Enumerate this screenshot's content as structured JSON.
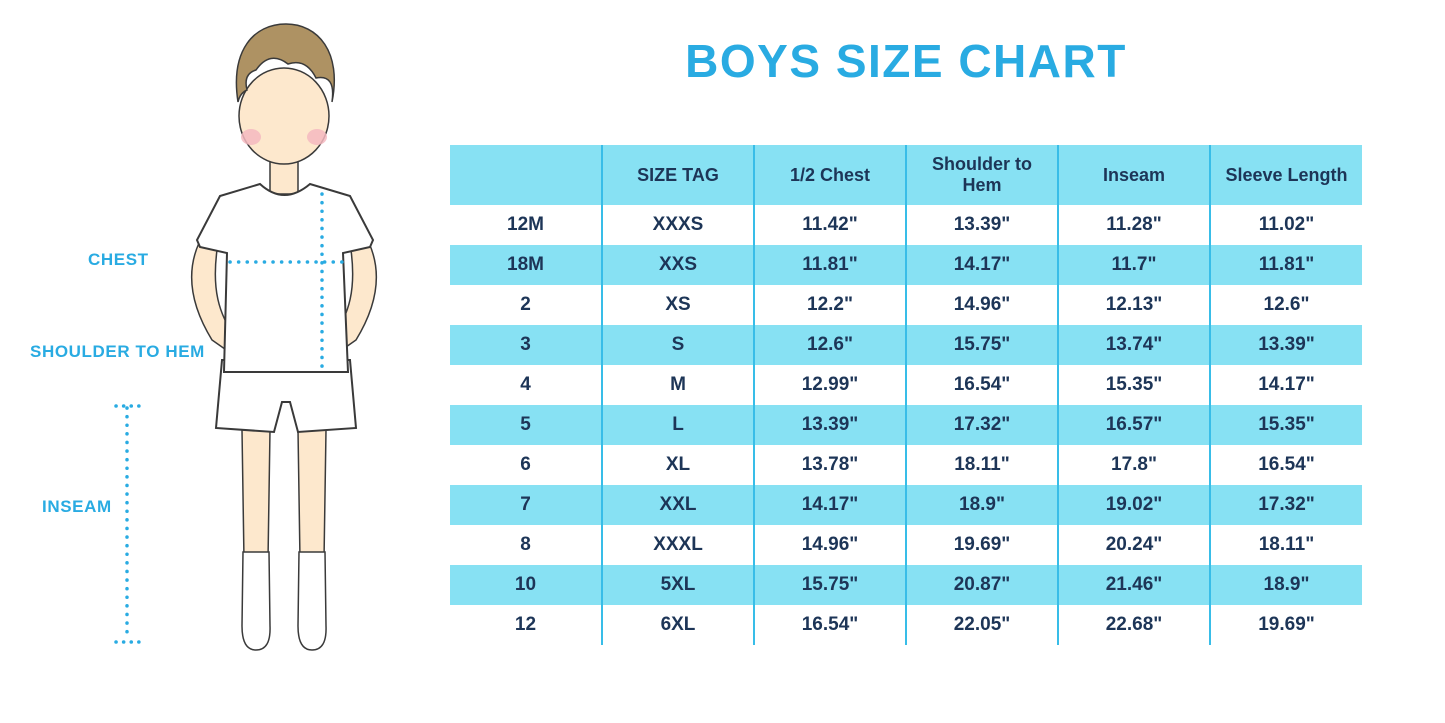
{
  "title": "BOYS SIZE CHART",
  "figure_labels": {
    "chest": "CHEST",
    "shoulder_to_hem": "SHOULDER TO HEM",
    "inseam": "INSEAM"
  },
  "colors": {
    "accent": "#29ABE2",
    "row_fill": "#87E1F3",
    "table_text": "#1D3557"
  },
  "chart_data": {
    "type": "table",
    "title": "BOYS SIZE CHART",
    "columns": [
      "",
      "SIZE TAG",
      "1/2 Chest",
      "Shoulder to Hem",
      "Inseam",
      "Sleeve Length"
    ],
    "rows": [
      [
        "12M",
        "XXXS",
        "11.42\"",
        "13.39\"",
        "11.28\"",
        "11.02\""
      ],
      [
        "18M",
        "XXS",
        "11.81\"",
        "14.17\"",
        "11.7\"",
        "11.81\""
      ],
      [
        "2",
        "XS",
        "12.2\"",
        "14.96\"",
        "12.13\"",
        "12.6\""
      ],
      [
        "3",
        "S",
        "12.6\"",
        "15.75\"",
        "13.74\"",
        "13.39\""
      ],
      [
        "4",
        "M",
        "12.99\"",
        "16.54\"",
        "15.35\"",
        "14.17\""
      ],
      [
        "5",
        "L",
        "13.39\"",
        "17.32\"",
        "16.57\"",
        "15.35\""
      ],
      [
        "6",
        "XL",
        "13.78\"",
        "18.11\"",
        "17.8\"",
        "16.54\""
      ],
      [
        "7",
        "XXL",
        "14.17\"",
        "18.9\"",
        "19.02\"",
        "17.32\""
      ],
      [
        "8",
        "XXXL",
        "14.96\"",
        "19.69\"",
        "20.24\"",
        "18.11\""
      ],
      [
        "10",
        "5XL",
        "15.75\"",
        "20.87\"",
        "21.46\"",
        "18.9\""
      ],
      [
        "12",
        "6XL",
        "16.54\"",
        "22.05\"",
        "22.68\"",
        "19.69\""
      ]
    ]
  }
}
